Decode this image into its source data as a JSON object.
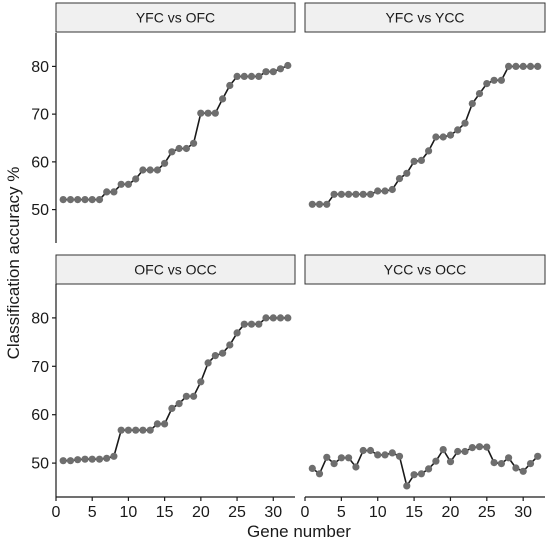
{
  "chart_data": {
    "type": "line",
    "xlabel": "Gene number",
    "ylabel": "Classification accuracy %",
    "xlim": [
      0,
      33
    ],
    "xticks": [
      0,
      5,
      10,
      15,
      20,
      25,
      30
    ],
    "ylim": [
      43,
      87
    ],
    "yticks": [
      50,
      60,
      70,
      80
    ],
    "grid": false,
    "point_color": "#6e6e6e",
    "line_color": "#1a1a1a",
    "panels": [
      {
        "title": "YFC vs OFC",
        "x": [
          1,
          2,
          3,
          4,
          5,
          6,
          7,
          8,
          9,
          10,
          11,
          12,
          13,
          14,
          15,
          16,
          17,
          18,
          19,
          20,
          21,
          22,
          23,
          24,
          25,
          26,
          27,
          28,
          29,
          30,
          31,
          32
        ],
        "y": [
          52.1,
          52.1,
          52.1,
          52.1,
          52.1,
          52.1,
          53.7,
          53.7,
          55.3,
          55.3,
          56.4,
          58.3,
          58.3,
          58.3,
          59.7,
          62.1,
          62.8,
          62.8,
          63.9,
          70.2,
          70.2,
          70.2,
          73.2,
          76.0,
          77.9,
          77.9,
          77.9,
          77.9,
          78.9,
          78.9,
          79.5,
          80.2
        ]
      },
      {
        "title": "YFC vs YCC",
        "x": [
          1,
          2,
          3,
          4,
          5,
          6,
          7,
          8,
          9,
          10,
          11,
          12,
          13,
          14,
          15,
          16,
          17,
          18,
          19,
          20,
          21,
          22,
          23,
          24,
          25,
          26,
          27,
          28,
          29,
          30,
          31,
          32
        ],
        "y": [
          51.1,
          51.1,
          51.1,
          53.2,
          53.2,
          53.2,
          53.2,
          53.2,
          53.2,
          53.9,
          53.9,
          54.2,
          56.5,
          57.6,
          60.1,
          60.3,
          62.3,
          65.2,
          65.2,
          65.6,
          66.7,
          68.1,
          72.2,
          74.3,
          76.4,
          77.1,
          77.1,
          80.0,
          80.0,
          80.0,
          80.0,
          80.0
        ]
      },
      {
        "title": "OFC vs OCC",
        "x": [
          1,
          2,
          3,
          4,
          5,
          6,
          7,
          8,
          9,
          10,
          11,
          12,
          13,
          14,
          15,
          16,
          17,
          18,
          19,
          20,
          21,
          22,
          23,
          24,
          25,
          26,
          27,
          28,
          29,
          30,
          31,
          32
        ],
        "y": [
          50.5,
          50.5,
          50.7,
          50.8,
          50.8,
          50.8,
          51.0,
          51.4,
          56.8,
          56.8,
          56.8,
          56.8,
          56.8,
          58.1,
          58.1,
          61.3,
          62.3,
          63.8,
          63.8,
          66.8,
          70.7,
          72.2,
          72.7,
          74.4,
          76.9,
          78.7,
          78.7,
          78.7,
          80.0,
          80.0,
          80.0,
          80.0
        ]
      },
      {
        "title": "YCC vs OCC",
        "x": [
          1,
          2,
          3,
          4,
          5,
          6,
          7,
          8,
          9,
          10,
          11,
          12,
          13,
          14,
          15,
          16,
          17,
          18,
          19,
          20,
          21,
          22,
          23,
          24,
          25,
          26,
          27,
          28,
          29,
          30,
          31,
          32
        ],
        "y": [
          48.9,
          47.8,
          51.2,
          49.9,
          51.1,
          51.1,
          49.2,
          52.6,
          52.6,
          51.7,
          51.7,
          52.1,
          51.4,
          45.3,
          47.6,
          47.8,
          48.8,
          50.4,
          52.8,
          50.3,
          52.4,
          52.4,
          53.2,
          53.4,
          53.3,
          50.1,
          49.9,
          51.1,
          49.0,
          48.3,
          49.9,
          51.4
        ]
      }
    ]
  }
}
